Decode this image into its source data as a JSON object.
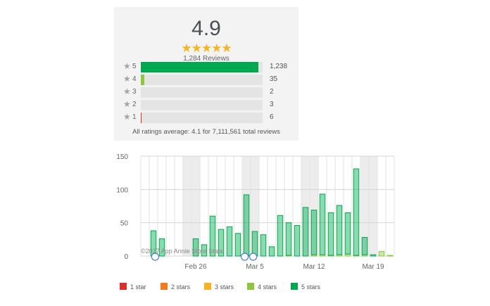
{
  "summary": {
    "average": "4.9",
    "stars": "★★★★★",
    "review_count": "1,284 Reviews",
    "breakdown": [
      {
        "label": "5",
        "count": "1,238",
        "fraction": 0.964,
        "color": "#00a94f"
      },
      {
        "label": "4",
        "count": "35",
        "fraction": 0.027,
        "color": "#8cc63e"
      },
      {
        "label": "3",
        "count": "2",
        "fraction": 0.0,
        "color": "#f5b423"
      },
      {
        "label": "2",
        "count": "3",
        "fraction": 0.0,
        "color": "#f07d1d"
      },
      {
        "label": "1",
        "count": "6",
        "fraction": 0.006,
        "color": "#d9302b"
      }
    ],
    "star_glyph": "★",
    "footer": "All ratings average: 4.1 for 7,111,561 total reviews"
  },
  "chart_data": {
    "type": "bar",
    "stacked": true,
    "ylim": [
      0,
      150
    ],
    "yticks": [
      0,
      50,
      100,
      150
    ],
    "x_tick_labels": [
      "Feb 26",
      "Mar 5",
      "Mar 12",
      "Mar 19"
    ],
    "x_tick_days": [
      6.5,
      13.5,
      20.5,
      27.5
    ],
    "days": 30,
    "weekend_days": [
      5,
      6,
      12,
      13,
      19,
      20,
      26,
      27
    ],
    "series": [
      {
        "name": "1 star",
        "color": "#d9302b",
        "values": [
          0,
          0,
          0,
          0,
          0,
          0,
          0,
          0,
          0,
          0,
          0,
          0,
          0,
          0,
          0,
          0,
          0,
          0,
          0,
          0,
          0,
          0,
          0,
          0,
          0,
          0,
          0,
          0,
          0,
          0
        ]
      },
      {
        "name": "2 stars",
        "color": "#f07d1d",
        "values": [
          0,
          0,
          0,
          0,
          0,
          0,
          0,
          0,
          0,
          0,
          0,
          0,
          0,
          0,
          0,
          0,
          0,
          0,
          0,
          0,
          0,
          0,
          0,
          0,
          0,
          0,
          0,
          0,
          0,
          0
        ]
      },
      {
        "name": "3 stars",
        "color": "#f5b423",
        "values": [
          0,
          0,
          0,
          0,
          0,
          0,
          0,
          0,
          0,
          0,
          0,
          0,
          0,
          0,
          0,
          0,
          0,
          0,
          0,
          0,
          0,
          0,
          0,
          0,
          0,
          0,
          0,
          0,
          0,
          0
        ]
      },
      {
        "name": "4 stars",
        "color": "#8cc63e",
        "values": [
          0,
          0,
          0,
          0,
          0,
          0,
          0,
          0,
          0,
          0,
          0,
          0,
          0,
          0,
          0,
          0,
          0,
          1,
          0,
          0,
          2,
          2,
          1,
          2,
          3,
          1,
          2,
          0,
          7,
          1
        ]
      },
      {
        "name": "5 stars",
        "color": "#00a94f",
        "values": [
          0,
          38,
          26,
          0,
          0,
          0,
          26,
          17,
          60,
          40,
          44,
          34,
          92,
          37,
          32,
          14,
          61,
          49,
          46,
          73,
          67,
          91,
          64,
          74,
          62,
          130,
          26,
          2,
          0,
          0
        ]
      }
    ],
    "watermark": "©2017 App Annie Store Stats"
  },
  "legend": [
    {
      "label": "1 star",
      "color": "#d9302b"
    },
    {
      "label": "2 stars",
      "color": "#f07d1d"
    },
    {
      "label": "3 stars",
      "color": "#f5b423"
    },
    {
      "label": "4 stars",
      "color": "#8cc63e"
    },
    {
      "label": "5 stars",
      "color": "#00a94f"
    }
  ],
  "markers": [
    "pin-icon",
    "pin-icon",
    "pin-icon"
  ]
}
